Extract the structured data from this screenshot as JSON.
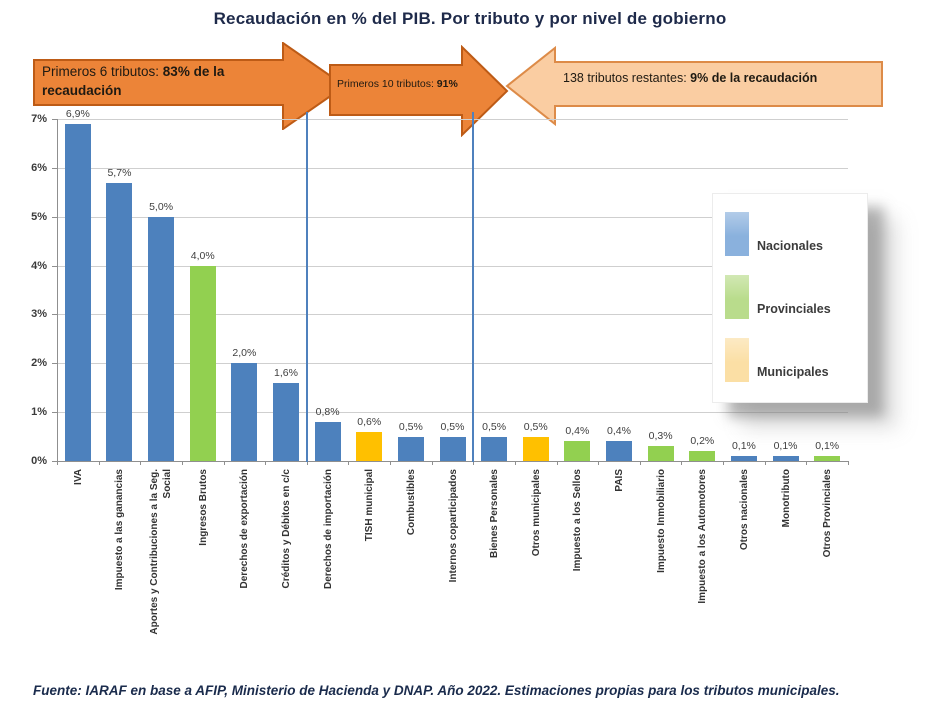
{
  "title": "Recaudación en % del PIB. Por tributo y por nivel de gobierno",
  "annotations": {
    "arrow1": {
      "prefix": "Primeros 6 tributos: ",
      "bold": "83% de la recaudación"
    },
    "arrow2": {
      "prefix": "Primeros 10 tributos: ",
      "bold": "91%"
    },
    "arrow3": {
      "prefix": "138 tributos restantes: ",
      "bold": "9% de la recaudación"
    }
  },
  "legend": {
    "items": [
      {
        "label": "Nacionales",
        "swatch_color": "#8ab1dd"
      },
      {
        "label": "Provinciales",
        "swatch_color": "#b9dc8c"
      },
      {
        "label": "Municipales",
        "swatch_color": "#fbdfa5"
      }
    ]
  },
  "footer": "Fuente: IARAF en base a AFIP, Ministerio de Hacienda y DNAP. Año 2022. Estimaciones propias para los tributos municipales.",
  "chart_data": {
    "type": "bar",
    "title": "Recaudación en % del PIB. Por tributo y por nivel de gobierno",
    "categories": [
      "IVA",
      "Impuesto a las ganancias",
      "Aportes y Contribuciones a la Seg. Social",
      "Ingresos Brutos",
      "Derechos de exportación",
      "Créditos y Débitos en c/c",
      "Derechos de importación",
      "TISH municipal",
      "Combustibles",
      "Internos coparticipados",
      "Bienes Personales",
      "Otros municipales",
      "Impuesto a los Sellos",
      "PAIS",
      "Impuesto Inmobiliario",
      "Impuesto a los Automotores",
      "Otros nacionales",
      "Monotributo",
      "Otros Provinciales"
    ],
    "values": [
      6.9,
      5.7,
      5.0,
      4.0,
      2.0,
      1.6,
      0.8,
      0.6,
      0.5,
      0.5,
      0.5,
      0.5,
      0.4,
      0.4,
      0.3,
      0.2,
      0.1,
      0.1,
      0.1
    ],
    "value_labels": [
      "6,9%",
      "5,7%",
      "5,0%",
      "4,0%",
      "2,0%",
      "1,6%",
      "0,8%",
      "0,6%",
      "0,5%",
      "0,5%",
      "0,5%",
      "0,5%",
      "0,4%",
      "0,4%",
      "0,3%",
      "0,2%",
      "0,1%",
      "0,1%",
      "0,1%"
    ],
    "level_per_bar": [
      "Nacionales",
      "Nacionales",
      "Nacionales",
      "Provinciales",
      "Nacionales",
      "Nacionales",
      "Nacionales",
      "Municipales",
      "Nacionales",
      "Nacionales",
      "Nacionales",
      "Municipales",
      "Provinciales",
      "Nacionales",
      "Provinciales",
      "Provinciales",
      "Nacionales",
      "Nacionales",
      "Provinciales"
    ],
    "level_colors": {
      "Nacionales": "#4d81bd",
      "Provinciales": "#92d050",
      "Municipales": "#ffc000"
    },
    "xlabel": "",
    "ylabel": "",
    "ylim": [
      0,
      7
    ],
    "yticks": [
      "0%",
      "1%",
      "2%",
      "3%",
      "4%",
      "5%",
      "6%",
      "7%"
    ],
    "grid": true,
    "legend_entries": [
      "Nacionales",
      "Provinciales",
      "Municipales"
    ],
    "legend_position": "inside-right",
    "dividers_after_category_index": [
      5,
      9
    ],
    "divider_color": "#4f81bd"
  }
}
